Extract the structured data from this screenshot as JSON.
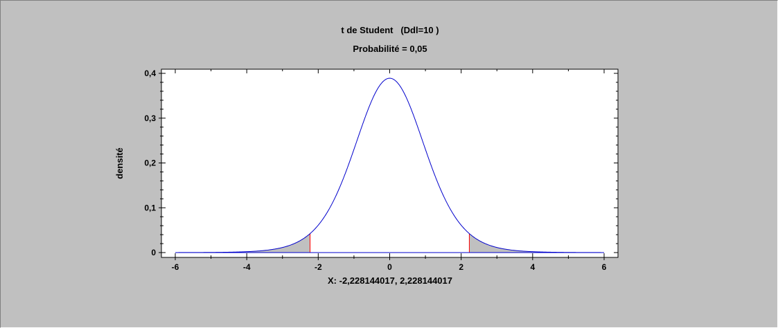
{
  "chart_data": {
    "type": "area",
    "title": "t de Student   (Ddl=10 )",
    "subtitle": "Probabilité = 0,05",
    "xlabel": "X: -2,228144017, 2,228144017",
    "ylabel": "densité",
    "degrees_of_freedom": 10,
    "probability": 0.05,
    "critical_values": [
      -2.228144017,
      2.228144017
    ],
    "xlim": [
      -6,
      6
    ],
    "ylim": [
      0,
      0.4
    ],
    "x_ticks": [
      -6,
      -4,
      -2,
      0,
      2,
      4,
      6
    ],
    "x_tick_labels": [
      "-6",
      "-4",
      "-2",
      "0",
      "2",
      "4",
      "6"
    ],
    "y_ticks": [
      0,
      0.1,
      0.2,
      0.3,
      0.4
    ],
    "y_tick_labels": [
      "0",
      "0,1",
      "0,2",
      "0,3",
      "0,4"
    ],
    "grid": false,
    "series": [
      {
        "x": [
          -6,
          -5,
          -4,
          -3,
          -2.228144017,
          -2,
          -1.5,
          -1,
          -0.5,
          0,
          0.5,
          1,
          1.5,
          2,
          2.228144017,
          3,
          4,
          5,
          6
        ],
        "values": [
          0.0001,
          0.0004,
          0.002,
          0.0114,
          0.0334,
          0.0611,
          0.1274,
          0.2304,
          0.34,
          0.3891,
          0.34,
          0.2304,
          0.1274,
          0.0611,
          0.0334,
          0.0114,
          0.002,
          0.0004,
          0.0001
        ]
      }
    ],
    "colors": {
      "curve": "#0000cc",
      "critical_line": "#ff0000",
      "tail_fill": "#c0c0c0",
      "plot_background": "#ffffff",
      "page_background": "#c0c0c0"
    }
  }
}
